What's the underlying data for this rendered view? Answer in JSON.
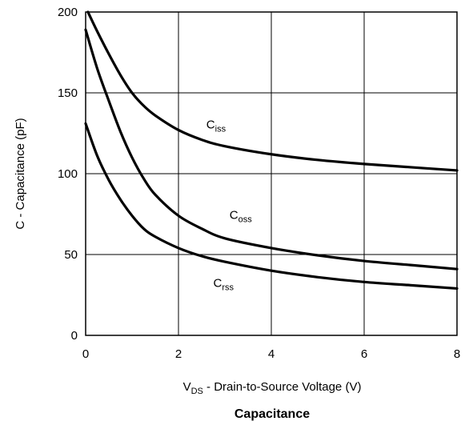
{
  "chart_data": {
    "type": "line",
    "title": "Capacitance",
    "xlabel": {
      "main": "V",
      "sub": "DS",
      "rest": " - Drain-to-Source Voltage (V)"
    },
    "ylabel": "C - Capacitance (pF)",
    "xlim": [
      0,
      8
    ],
    "ylim": [
      0,
      200
    ],
    "xticks": [
      0,
      2,
      4,
      6,
      8
    ],
    "yticks": [
      0,
      50,
      100,
      150,
      200
    ],
    "xtick_labels": [
      "0",
      "2",
      "4",
      "6",
      "8"
    ],
    "ytick_labels": [
      "0",
      "50",
      "100",
      "150",
      "200"
    ],
    "grid": true,
    "colors": {
      "line": "#000000",
      "grid": "#000000",
      "background": "#ffffff"
    },
    "series": [
      {
        "name": "Ciss",
        "label_main": "C",
        "label_sub": "iss",
        "label_at": [
          2.6,
          128
        ],
        "x": [
          0.05,
          0.25,
          0.5,
          0.75,
          1.0,
          1.25,
          1.5,
          2.0,
          2.5,
          3.0,
          4.0,
          5.0,
          6.0,
          7.0,
          8.0
        ],
        "y": [
          200,
          188,
          174,
          161,
          150,
          142,
          136,
          127,
          121,
          117,
          112,
          108.5,
          106,
          104,
          102
        ]
      },
      {
        "name": "Coss",
        "label_main": "C",
        "label_sub": "oss",
        "label_at": [
          3.1,
          72
        ],
        "x": [
          0.0,
          0.25,
          0.5,
          0.75,
          1.0,
          1.25,
          1.5,
          2.0,
          2.5,
          3.0,
          4.0,
          5.0,
          6.0,
          7.0,
          8.0
        ],
        "y": [
          189,
          165,
          145,
          126,
          110,
          97,
          87,
          74,
          66,
          60,
          54,
          49.5,
          46,
          43.5,
          41
        ]
      },
      {
        "name": "Crss",
        "label_main": "C",
        "label_sub": "rss",
        "label_at": [
          2.75,
          30
        ],
        "x": [
          0.0,
          0.25,
          0.5,
          0.75,
          1.0,
          1.25,
          1.5,
          2.0,
          2.5,
          3.0,
          4.0,
          5.0,
          6.0,
          7.0,
          8.0
        ],
        "y": [
          131,
          111,
          96,
          84,
          74,
          66,
          61,
          54,
          49,
          45.5,
          40,
          36,
          33,
          31,
          29
        ]
      }
    ]
  }
}
